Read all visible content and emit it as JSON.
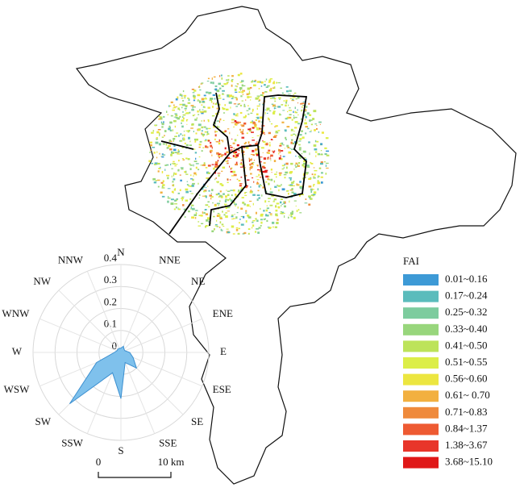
{
  "map": {
    "legend": {
      "title": "FAI",
      "items": [
        {
          "label": "0.01~0.16",
          "color": "#3d9ad6"
        },
        {
          "label": "0.17~0.24",
          "color": "#5bbcbc"
        },
        {
          "label": "0.25~0.32",
          "color": "#7dcc9e"
        },
        {
          "label": "0.33~0.40",
          "color": "#98d67c"
        },
        {
          "label": "0.41~0.50",
          "color": "#bde35a"
        },
        {
          "label": "0.51~0.55",
          "color": "#dcee48"
        },
        {
          "label": "0.56~0.60",
          "color": "#ece640"
        },
        {
          "label": "0.61~ 0.70",
          "color": "#f2b040"
        },
        {
          "label": "0.71~0.83",
          "color": "#ef8a3c"
        },
        {
          "label": "0.84~1.37",
          "color": "#ee5a32"
        },
        {
          "label": "1.38~3.67",
          "color": "#e8352a"
        },
        {
          "label": "3.68~15.10",
          "color": "#e01818"
        }
      ]
    },
    "scale_bar": {
      "labels": [
        "0",
        "10 km"
      ]
    }
  },
  "chart_data": {
    "type": "radar",
    "categories": [
      "N",
      "NNE",
      "NE",
      "ENE",
      "E",
      "ESE",
      "SE",
      "SSE",
      "S",
      "SSW",
      "SW",
      "WSW",
      "W",
      "WNW",
      "NW",
      "NNW"
    ],
    "values": [
      0.02,
      0.03,
      0.02,
      0.02,
      0.04,
      0.06,
      0.1,
      0.05,
      0.21,
      0.1,
      0.33,
      0.12,
      0.03,
      0.02,
      0.02,
      0.02
    ],
    "rlim": [
      0,
      0.4
    ],
    "rticks": [
      0,
      0.1,
      0.2,
      0.3,
      0.4
    ],
    "color": "#7fc1ec"
  }
}
